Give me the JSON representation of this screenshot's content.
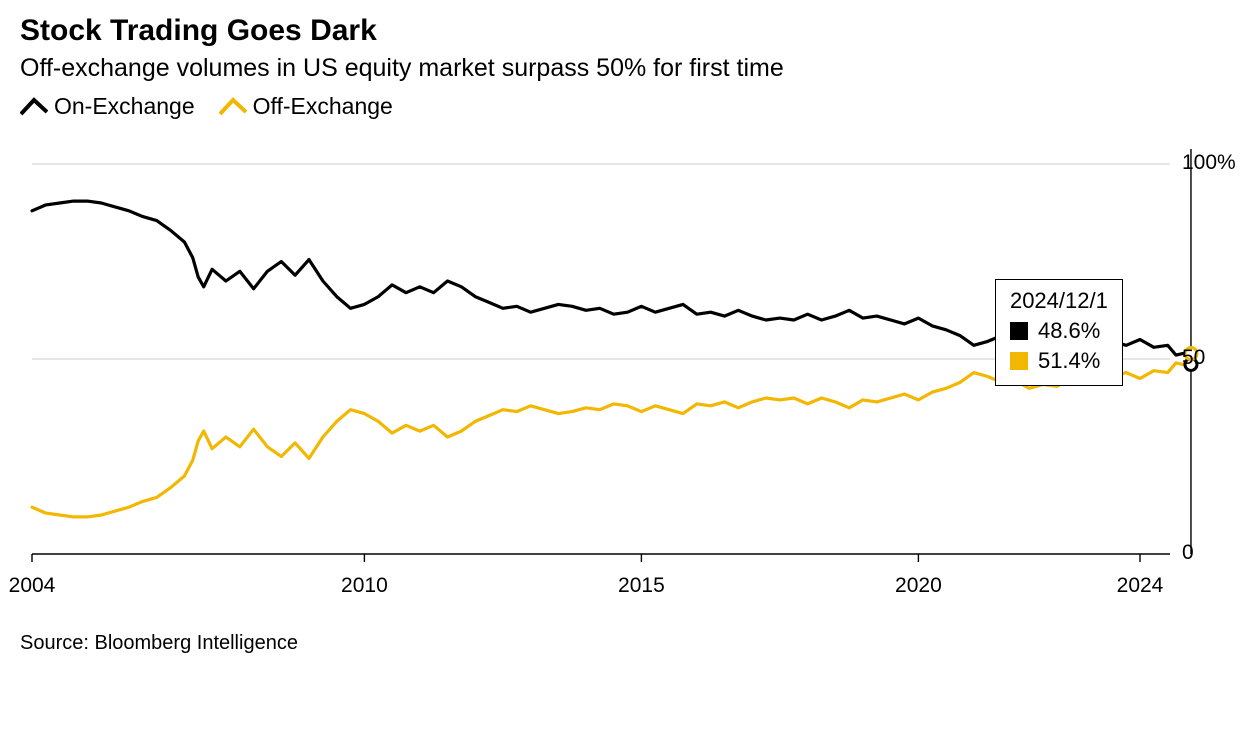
{
  "title": "Stock Trading Goes Dark",
  "subtitle": "Off-exchange volumes in US equity market surpass 50% for first time",
  "source": "Source: Bloomberg Intelligence",
  "legend": {
    "on": {
      "label": "On-Exchange",
      "color": "#000000"
    },
    "off": {
      "label": "Off-Exchange",
      "color": "#f2b700"
    }
  },
  "chart": {
    "type": "line",
    "background_color": "#ffffff",
    "grid_color": "#dddddd",
    "axis_color": "#000000",
    "line_width": 3.2,
    "x_axis": {
      "range": [
        2004,
        2024
      ],
      "ticks": [
        2004,
        2010,
        2015,
        2020,
        2024
      ],
      "labels": [
        "2004",
        "2010",
        "2015",
        "2020",
        "2024"
      ],
      "label_fontsize": 21
    },
    "y_axis": {
      "range": [
        0,
        100
      ],
      "ticks": [
        0,
        50,
        100
      ],
      "labels": [
        "0",
        "50",
        "100%"
      ],
      "label_fontsize": 21,
      "side": "right"
    },
    "highlight": {
      "date_label": "2024/12/1",
      "x": 2024.92,
      "marker_radius": 6,
      "marker_stroke_width": 3,
      "values": [
        {
          "series": "on",
          "value": 48.6,
          "label": "48.6%"
        },
        {
          "series": "off",
          "value": 51.4,
          "label": "51.4%"
        }
      ]
    },
    "series": {
      "on": {
        "color": "#000000",
        "points": [
          [
            2004.0,
            88.0
          ],
          [
            2004.25,
            89.5
          ],
          [
            2004.5,
            90.0
          ],
          [
            2004.75,
            90.5
          ],
          [
            2005.0,
            90.5
          ],
          [
            2005.25,
            90.0
          ],
          [
            2005.5,
            89.0
          ],
          [
            2005.75,
            88.0
          ],
          [
            2006.0,
            86.5
          ],
          [
            2006.25,
            85.5
          ],
          [
            2006.5,
            83.0
          ],
          [
            2006.75,
            80.0
          ],
          [
            2006.9,
            76.0
          ],
          [
            2007.0,
            71.0
          ],
          [
            2007.1,
            68.5
          ],
          [
            2007.25,
            73.0
          ],
          [
            2007.5,
            70.0
          ],
          [
            2007.75,
            72.5
          ],
          [
            2008.0,
            68.0
          ],
          [
            2008.25,
            72.5
          ],
          [
            2008.5,
            75.0
          ],
          [
            2008.75,
            71.5
          ],
          [
            2009.0,
            75.5
          ],
          [
            2009.25,
            70.0
          ],
          [
            2009.5,
            66.0
          ],
          [
            2009.75,
            63.0
          ],
          [
            2010.0,
            64.0
          ],
          [
            2010.25,
            66.0
          ],
          [
            2010.5,
            69.0
          ],
          [
            2010.75,
            67.0
          ],
          [
            2011.0,
            68.5
          ],
          [
            2011.25,
            67.0
          ],
          [
            2011.5,
            70.0
          ],
          [
            2011.75,
            68.5
          ],
          [
            2012.0,
            66.0
          ],
          [
            2012.25,
            64.5
          ],
          [
            2012.5,
            63.0
          ],
          [
            2012.75,
            63.5
          ],
          [
            2013.0,
            62.0
          ],
          [
            2013.25,
            63.0
          ],
          [
            2013.5,
            64.0
          ],
          [
            2013.75,
            63.5
          ],
          [
            2014.0,
            62.5
          ],
          [
            2014.25,
            63.0
          ],
          [
            2014.5,
            61.5
          ],
          [
            2014.75,
            62.0
          ],
          [
            2015.0,
            63.5
          ],
          [
            2015.25,
            62.0
          ],
          [
            2015.5,
            63.0
          ],
          [
            2015.75,
            64.0
          ],
          [
            2016.0,
            61.5
          ],
          [
            2016.25,
            62.0
          ],
          [
            2016.5,
            61.0
          ],
          [
            2016.75,
            62.5
          ],
          [
            2017.0,
            61.0
          ],
          [
            2017.25,
            60.0
          ],
          [
            2017.5,
            60.5
          ],
          [
            2017.75,
            60.0
          ],
          [
            2018.0,
            61.5
          ],
          [
            2018.25,
            60.0
          ],
          [
            2018.5,
            61.0
          ],
          [
            2018.75,
            62.5
          ],
          [
            2019.0,
            60.5
          ],
          [
            2019.25,
            61.0
          ],
          [
            2019.5,
            60.0
          ],
          [
            2019.75,
            59.0
          ],
          [
            2020.0,
            60.5
          ],
          [
            2020.25,
            58.5
          ],
          [
            2020.5,
            57.5
          ],
          [
            2020.75,
            56.0
          ],
          [
            2021.0,
            53.5
          ],
          [
            2021.25,
            54.5
          ],
          [
            2021.5,
            56.0
          ],
          [
            2021.75,
            55.5
          ],
          [
            2022.0,
            57.5
          ],
          [
            2022.25,
            56.5
          ],
          [
            2022.5,
            57.0
          ],
          [
            2022.75,
            55.0
          ],
          [
            2023.0,
            54.0
          ],
          [
            2023.25,
            55.5
          ],
          [
            2023.5,
            54.5
          ],
          [
            2023.75,
            53.5
          ],
          [
            2024.0,
            55.0
          ],
          [
            2024.25,
            53.0
          ],
          [
            2024.5,
            53.5
          ],
          [
            2024.65,
            51.0
          ],
          [
            2024.8,
            51.5
          ],
          [
            2024.92,
            48.6
          ]
        ]
      },
      "off": {
        "color": "#f2b700",
        "points": [
          [
            2004.0,
            12.0
          ],
          [
            2004.25,
            10.5
          ],
          [
            2004.5,
            10.0
          ],
          [
            2004.75,
            9.5
          ],
          [
            2005.0,
            9.5
          ],
          [
            2005.25,
            10.0
          ],
          [
            2005.5,
            11.0
          ],
          [
            2005.75,
            12.0
          ],
          [
            2006.0,
            13.5
          ],
          [
            2006.25,
            14.5
          ],
          [
            2006.5,
            17.0
          ],
          [
            2006.75,
            20.0
          ],
          [
            2006.9,
            24.0
          ],
          [
            2007.0,
            29.0
          ],
          [
            2007.1,
            31.5
          ],
          [
            2007.25,
            27.0
          ],
          [
            2007.5,
            30.0
          ],
          [
            2007.75,
            27.5
          ],
          [
            2008.0,
            32.0
          ],
          [
            2008.25,
            27.5
          ],
          [
            2008.5,
            25.0
          ],
          [
            2008.75,
            28.5
          ],
          [
            2009.0,
            24.5
          ],
          [
            2009.25,
            30.0
          ],
          [
            2009.5,
            34.0
          ],
          [
            2009.75,
            37.0
          ],
          [
            2010.0,
            36.0
          ],
          [
            2010.25,
            34.0
          ],
          [
            2010.5,
            31.0
          ],
          [
            2010.75,
            33.0
          ],
          [
            2011.0,
            31.5
          ],
          [
            2011.25,
            33.0
          ],
          [
            2011.5,
            30.0
          ],
          [
            2011.75,
            31.5
          ],
          [
            2012.0,
            34.0
          ],
          [
            2012.25,
            35.5
          ],
          [
            2012.5,
            37.0
          ],
          [
            2012.75,
            36.5
          ],
          [
            2013.0,
            38.0
          ],
          [
            2013.25,
            37.0
          ],
          [
            2013.5,
            36.0
          ],
          [
            2013.75,
            36.5
          ],
          [
            2014.0,
            37.5
          ],
          [
            2014.25,
            37.0
          ],
          [
            2014.5,
            38.5
          ],
          [
            2014.75,
            38.0
          ],
          [
            2015.0,
            36.5
          ],
          [
            2015.25,
            38.0
          ],
          [
            2015.5,
            37.0
          ],
          [
            2015.75,
            36.0
          ],
          [
            2016.0,
            38.5
          ],
          [
            2016.25,
            38.0
          ],
          [
            2016.5,
            39.0
          ],
          [
            2016.75,
            37.5
          ],
          [
            2017.0,
            39.0
          ],
          [
            2017.25,
            40.0
          ],
          [
            2017.5,
            39.5
          ],
          [
            2017.75,
            40.0
          ],
          [
            2018.0,
            38.5
          ],
          [
            2018.25,
            40.0
          ],
          [
            2018.5,
            39.0
          ],
          [
            2018.75,
            37.5
          ],
          [
            2019.0,
            39.5
          ],
          [
            2019.25,
            39.0
          ],
          [
            2019.5,
            40.0
          ],
          [
            2019.75,
            41.0
          ],
          [
            2020.0,
            39.5
          ],
          [
            2020.25,
            41.5
          ],
          [
            2020.5,
            42.5
          ],
          [
            2020.75,
            44.0
          ],
          [
            2021.0,
            46.5
          ],
          [
            2021.25,
            45.5
          ],
          [
            2021.5,
            44.0
          ],
          [
            2021.75,
            44.5
          ],
          [
            2022.0,
            42.5
          ],
          [
            2022.25,
            43.5
          ],
          [
            2022.5,
            43.0
          ],
          [
            2022.75,
            45.0
          ],
          [
            2023.0,
            46.0
          ],
          [
            2023.25,
            44.5
          ],
          [
            2023.5,
            45.5
          ],
          [
            2023.75,
            46.5
          ],
          [
            2024.0,
            45.0
          ],
          [
            2024.25,
            47.0
          ],
          [
            2024.5,
            46.5
          ],
          [
            2024.65,
            49.0
          ],
          [
            2024.8,
            48.5
          ],
          [
            2024.92,
            51.4
          ]
        ]
      }
    }
  }
}
